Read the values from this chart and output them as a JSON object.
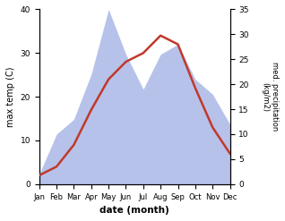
{
  "months": [
    "Jan",
    "Feb",
    "Mar",
    "Apr",
    "May",
    "Jun",
    "Jul",
    "Aug",
    "Sep",
    "Oct",
    "Nov",
    "Dec"
  ],
  "temp": [
    2,
    4,
    9,
    17,
    24,
    28,
    30,
    34,
    32,
    22,
    13,
    7
  ],
  "precip": [
    2,
    10,
    13,
    22,
    35,
    26,
    19,
    26,
    28,
    21,
    18,
    12
  ],
  "temp_color": "#c0392b",
  "precip_fill_color": "#b0bce8",
  "ylabel_left": "max temp (C)",
  "ylabel_right": "med. precipitation\n(kg/m2)",
  "xlabel": "date (month)",
  "ylim_left": [
    0,
    40
  ],
  "ylim_right": [
    0,
    35
  ],
  "left_yticks": [
    0,
    10,
    20,
    30,
    40
  ],
  "right_yticks": [
    0,
    5,
    10,
    15,
    20,
    25,
    30,
    35
  ],
  "bg_color": "#ffffff",
  "linewidth": 1.8
}
